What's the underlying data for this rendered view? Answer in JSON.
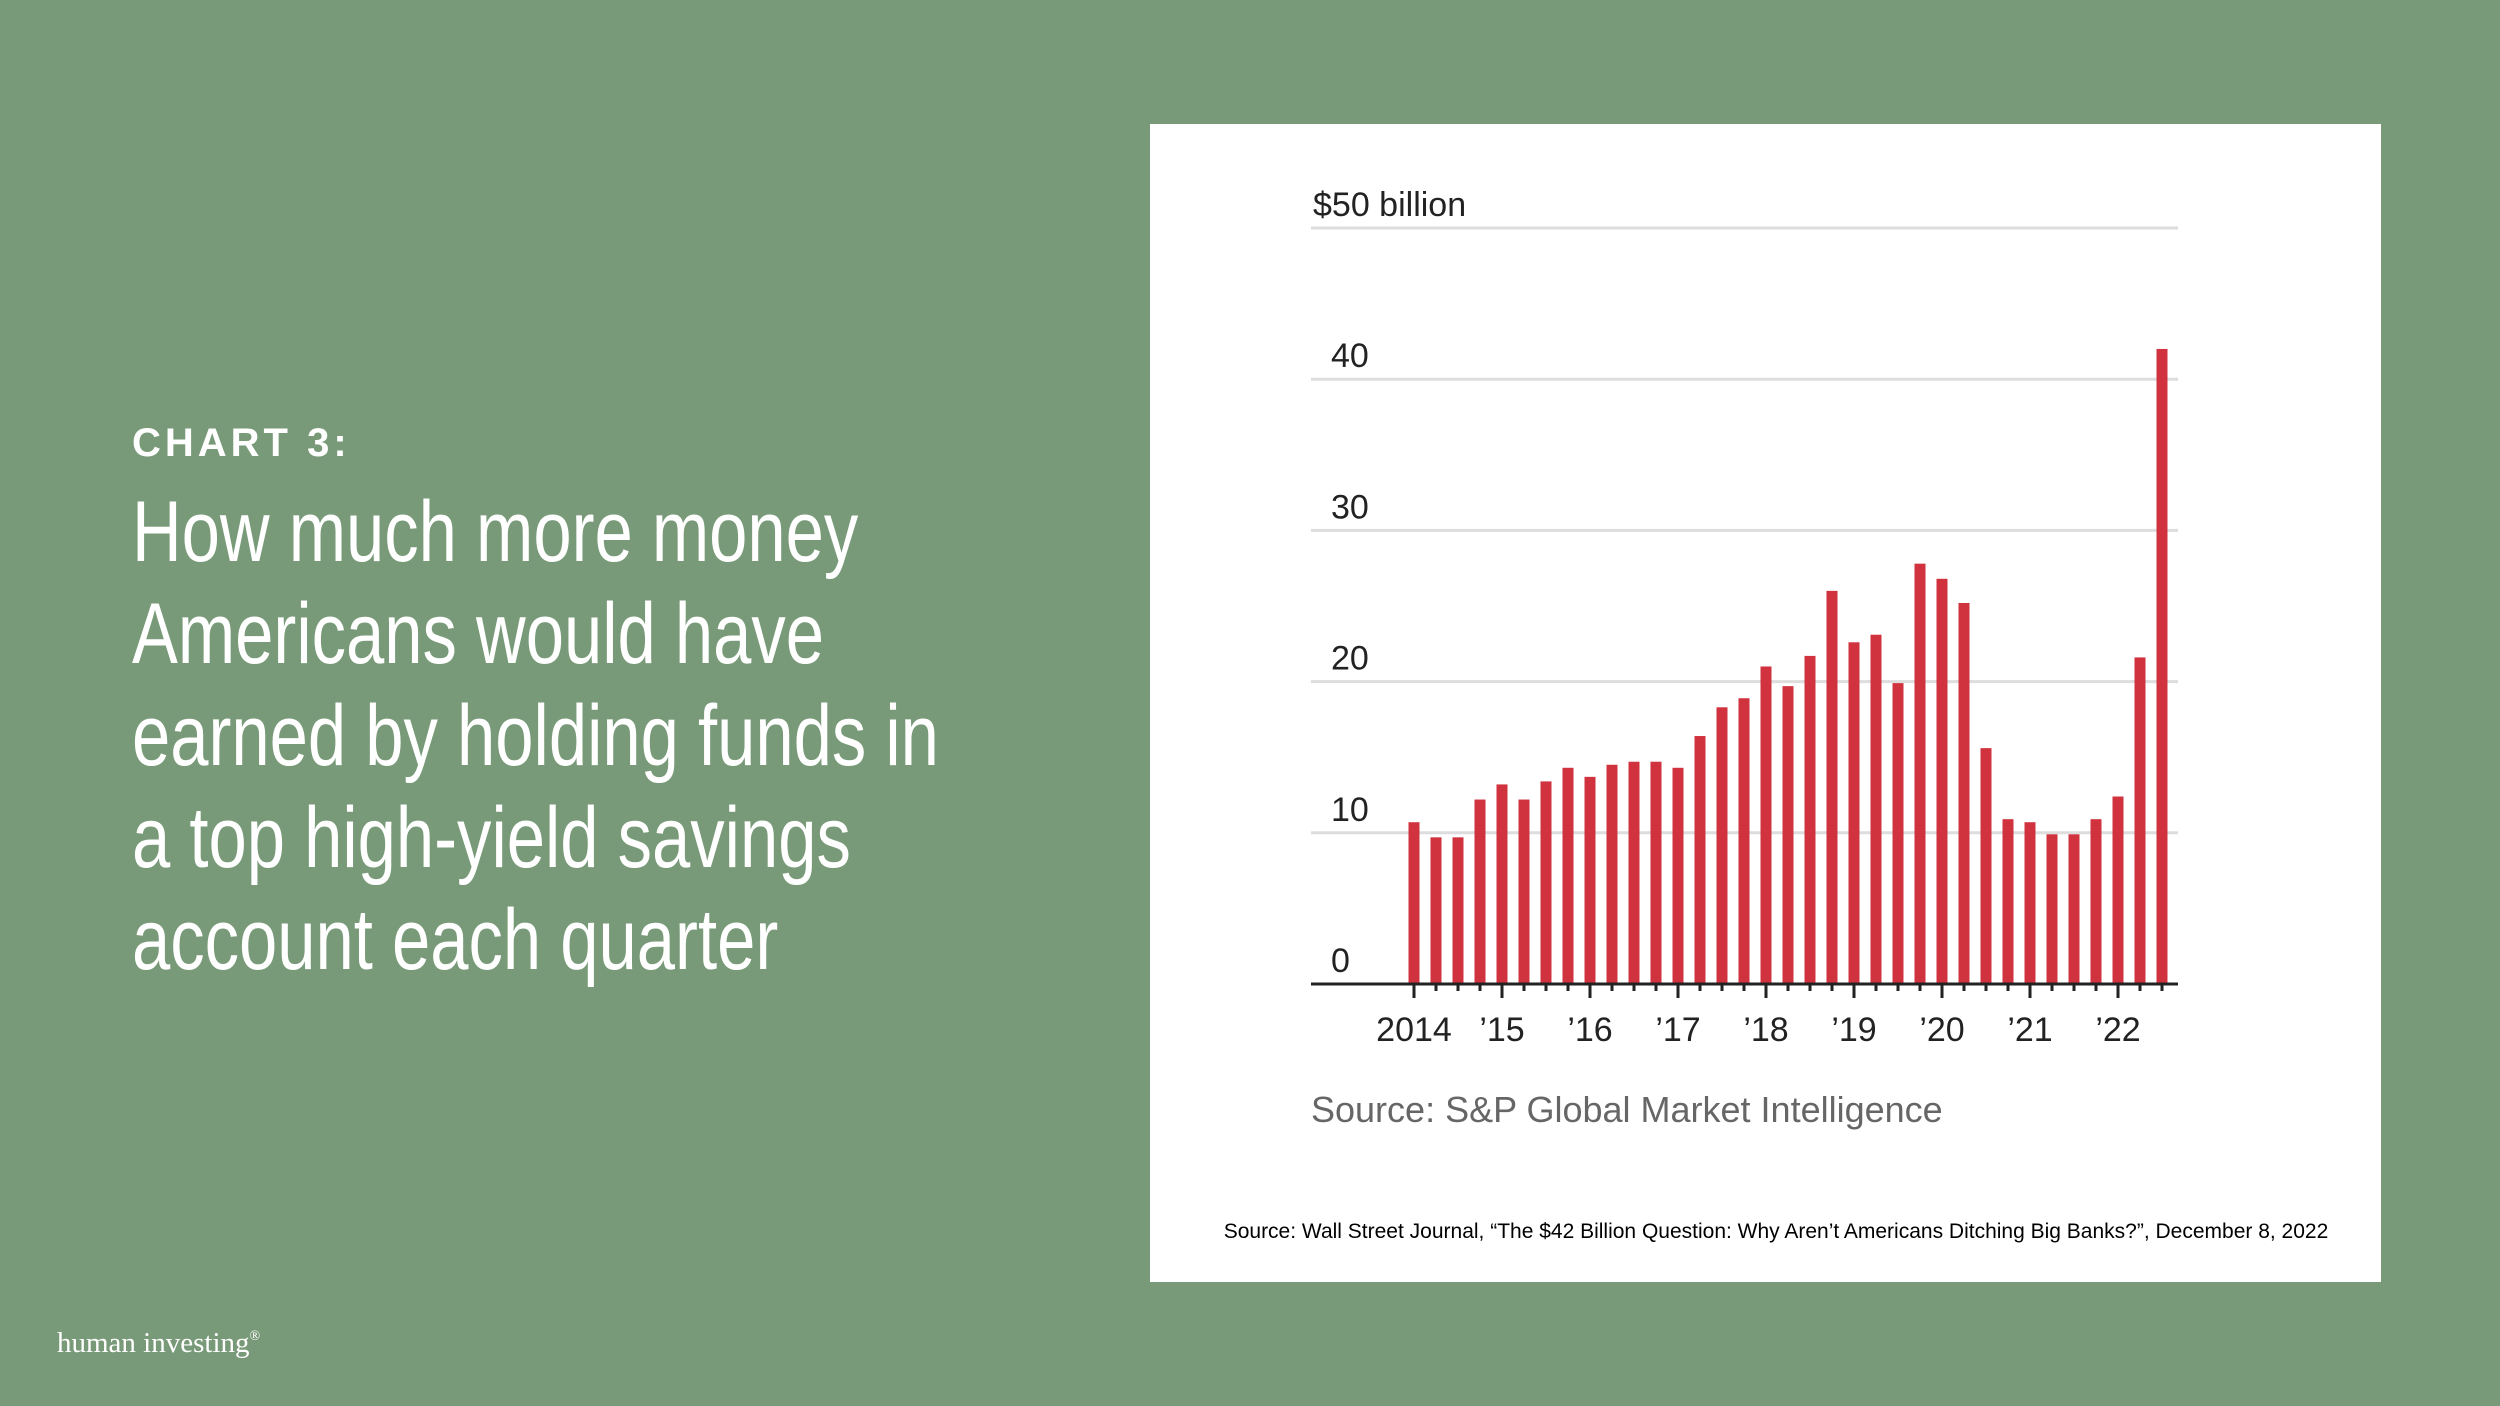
{
  "eyebrow": "CHART 3:",
  "headline": [
    "How much more money",
    "Americans would have",
    "earned by holding funds in",
    "a top high-yield savings",
    "account each quarter"
  ],
  "footnote": "Source: Wall Street Journal, “The $42 Billion Question: Why Aren’t Americans Ditching Big Banks?”, December 8, 2022",
  "brand": {
    "name": "human investing",
    "mark": "®"
  },
  "chart_data": {
    "type": "bar",
    "categories": [
      "2014",
      null,
      null,
      null,
      "’15",
      null,
      null,
      null,
      "’16",
      null,
      null,
      null,
      "’17",
      null,
      null,
      null,
      "’18",
      null,
      null,
      null,
      "’19",
      null,
      null,
      null,
      "’20",
      null,
      null,
      null,
      "’21",
      null,
      null,
      null,
      "’22",
      null,
      null
    ],
    "values": [
      10.7,
      9.7,
      9.7,
      12.2,
      13.2,
      12.2,
      13.4,
      14.3,
      13.7,
      14.5,
      14.7,
      14.7,
      14.3,
      16.4,
      18.3,
      18.9,
      21,
      19.7,
      21.7,
      26,
      22.6,
      23.1,
      19.9,
      27.8,
      26.8,
      25.2,
      15.6,
      10.9,
      10.7,
      9.9,
      9.9,
      10.9,
      12.4,
      21.6,
      42
    ],
    "color": "#d0323e",
    "ylim": [
      0,
      50
    ],
    "yticks": [
      0,
      10,
      20,
      30,
      40,
      {
        "value": 50,
        "label": "$50 billion"
      }
    ],
    "grid": true,
    "source": "Source: S&P Global Market Intelligence"
  }
}
